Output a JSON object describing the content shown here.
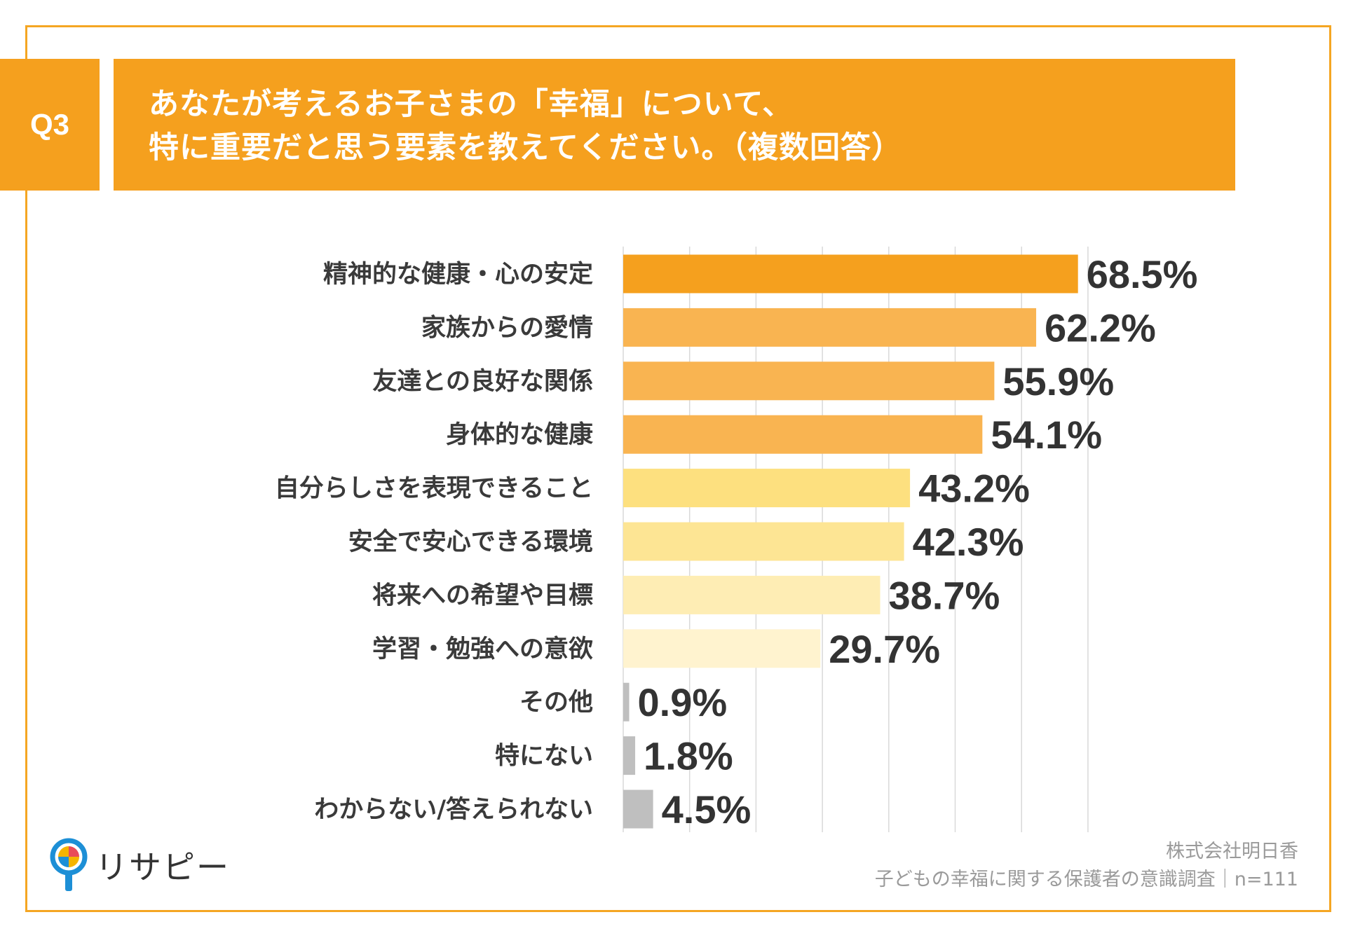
{
  "question": {
    "badge": "Q3",
    "title_line1": "あなたが考えるお子さまの「幸福」について、",
    "title_line2": "特に重要だと思う要素を教えてください。（複数回答）"
  },
  "brand": {
    "name": "リサピー",
    "icon": "pin-logo-icon"
  },
  "source": {
    "company": "株式会社明日香",
    "survey": "子どもの幸福に関する保護者の意識調査｜n=111"
  },
  "colors": {
    "frame": "#f5a623",
    "header": "#f5a01e",
    "grid": "#d9d9d9"
  },
  "chart_data": {
    "type": "bar",
    "orientation": "horizontal",
    "categories": [
      "精神的な健康・心の安定",
      "家族からの愛情",
      "友達との良好な関係",
      "身体的な健康",
      "自分らしさを表現できること",
      "安全で安心できる環境",
      "将来への希望や目標",
      "学習・勉強への意欲",
      "その他",
      "特にない",
      "わからない/答えられない"
    ],
    "values": [
      68.5,
      62.2,
      55.9,
      54.1,
      43.2,
      42.3,
      38.7,
      29.7,
      0.9,
      1.8,
      4.5
    ],
    "value_labels": [
      "68.5%",
      "62.2%",
      "55.9%",
      "54.1%",
      "43.2%",
      "42.3%",
      "38.7%",
      "29.7%",
      "0.9%",
      "1.8%",
      "4.5%"
    ],
    "bar_colors": [
      "#f5a01e",
      "#f9b451",
      "#f9b451",
      "#f9b451",
      "#fde07f",
      "#fde594",
      "#feedb4",
      "#fff3cf",
      "#bfbfbf",
      "#bfbfbf",
      "#bfbfbf"
    ],
    "xlim": [
      0,
      100
    ],
    "grid": true,
    "grid_step": 10,
    "xlabel": "",
    "ylabel": ""
  }
}
